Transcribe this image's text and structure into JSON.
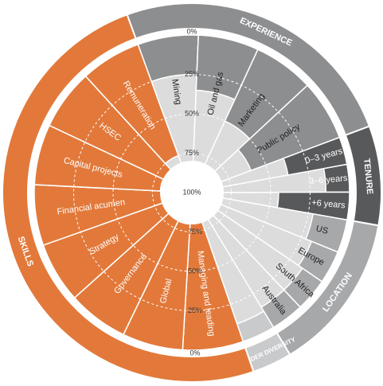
{
  "chart_data": {
    "type": "radial_bar",
    "ylim": [
      0,
      100
    ],
    "yticks": [
      {
        "value": 0,
        "label": "0%"
      },
      {
        "value": 25,
        "label": "25%"
      },
      {
        "value": 50,
        "label": "50%"
      },
      {
        "value": 75,
        "label": "75%"
      },
      {
        "value": 100,
        "label": "100%"
      }
    ],
    "grid": true,
    "series": [
      {
        "name": "EXPERIENCE",
        "color": "#8d8e90",
        "categories": [
          "Mining",
          "Oil and gas",
          "Marketing",
          "Public policy"
        ],
        "values": [
          25,
          35,
          50,
          60
        ]
      },
      {
        "name": "TENURE",
        "color": "#58595b",
        "categories": [
          "0–3 years",
          "3–6 years",
          "+6 years"
        ],
        "values": [
          38,
          15,
          45
        ]
      },
      {
        "name": "LOCATION",
        "color": "#a7a8aa",
        "categories": [
          "US",
          "Europe",
          "South Africa",
          "Australia"
        ],
        "values": [
          22,
          18,
          15,
          15
        ]
      },
      {
        "name": "GENDER DIVERSITY",
        "color": "#c9cacc",
        "categories": [
          null
        ],
        "values": [
          12
        ]
      },
      {
        "name": "SKILLS",
        "color": "#e2793a",
        "categories": [
          "Managing and leading",
          "Global",
          "Governance",
          "Strategy",
          "Financial acumen",
          "Capital projects",
          "HSEC",
          "Remuneration"
        ],
        "values": [
          100,
          80,
          85,
          85,
          85,
          80,
          85,
          75
        ]
      }
    ]
  }
}
